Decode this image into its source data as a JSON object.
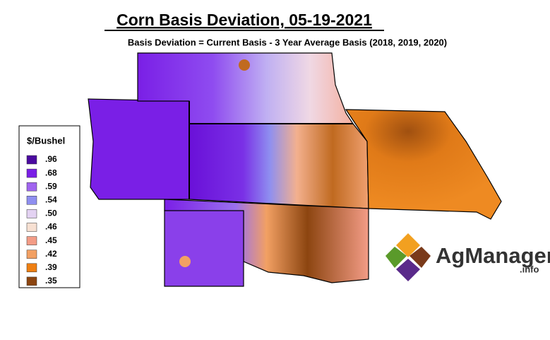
{
  "title": "Corn Basis Deviation, 05-19-2021",
  "subtitle": "Basis Deviation = Current Basis - 3 Year Average Basis (2018, 2019, 2020)",
  "legend": {
    "title": "$/Bushel",
    "items": [
      {
        "label": ".96",
        "color": "#4b0aa0"
      },
      {
        "label": ".68",
        "color": "#7a1fe6"
      },
      {
        "label": ".59",
        "color": "#a064ef"
      },
      {
        "label": ".54",
        "color": "#8f8ff0"
      },
      {
        "label": ".50",
        "color": "#e3d2f2"
      },
      {
        "label": ".46",
        "color": "#f7e0d2"
      },
      {
        "label": ".45",
        "color": "#f39c86"
      },
      {
        "label": ".42",
        "color": "#f2a063"
      },
      {
        "label": ".39",
        "color": "#ee7f12"
      },
      {
        "label": ".35",
        "color": "#8c4510"
      }
    ]
  },
  "logo": {
    "name": "AgManager",
    "suffix": ".info"
  }
}
